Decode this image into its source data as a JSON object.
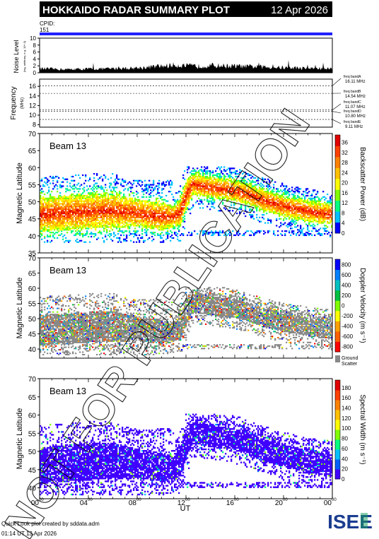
{
  "header": {
    "title": "HOKKAIDO RADAR SUMMARY PLOT",
    "date": "12 Apr 2026",
    "cpid_label": "CPID:",
    "cpid_value": "151"
  },
  "colors": {
    "header_bg": "#000000",
    "cpid_bar": "#2020ff",
    "ground_scatter": "#888888"
  },
  "noise_panel": {
    "ylabel": "Noise Level",
    "ylabel_sub": "(log, arbitrary, e.g. 10^-3)",
    "yticks": [
      "0",
      "2",
      "4",
      "6",
      "8",
      "10"
    ],
    "ylim": [
      0,
      10
    ]
  },
  "freq_panel": {
    "ylabel": "Frequency",
    "ylabel_sub": "(MHz)",
    "yticks": [
      "8",
      "10",
      "12",
      "14",
      "16"
    ],
    "ylim": [
      7.5,
      17.5
    ],
    "bands": [
      {
        "name": "freq bandA",
        "value": "16.11 MHz",
        "mhz": 16.11
      },
      {
        "name": "freq bandB",
        "value": "14.54 MHz",
        "mhz": 14.54
      },
      {
        "name": "freq bandC",
        "value": "11.07 MHz",
        "mhz": 11.07
      },
      {
        "name": "freq bandD",
        "value": "10.80 MHz",
        "mhz": 10.8
      },
      {
        "name": "freq bandE",
        "value": "9.11 MHz",
        "mhz": 9.11
      }
    ]
  },
  "panels": [
    {
      "beam_label": "Beam 13",
      "ylabel": "Magnetic Latitude",
      "yticks": [
        "35",
        "40",
        "45",
        "50",
        "55",
        "60",
        "65",
        "70"
      ],
      "ylim": [
        35,
        70
      ],
      "colorbar_label": "Backscatter Power (dB)",
      "colorbar_ticks": [
        "0",
        "4",
        "8",
        "12",
        "16",
        "20",
        "24",
        "28",
        "32",
        "36"
      ],
      "colorbar_range": [
        0,
        39
      ],
      "colorbar_colors": [
        "#0000ff",
        "#00c0ff",
        "#00ff80",
        "#80ff00",
        "#ffff00",
        "#ffc000",
        "#ff8000",
        "#ff4000",
        "#e00000"
      ]
    },
    {
      "beam_label": "Beam 13",
      "ylabel": "Magnetic Latitude",
      "yticks": [
        "40",
        "45",
        "50",
        "55",
        "60",
        "65",
        "70"
      ],
      "ylim": [
        37,
        70
      ],
      "colorbar_label": "Doppler Velocity (m s⁻¹)",
      "colorbar_ticks": [
        "-800",
        "-600",
        "-400",
        "-200",
        "0",
        "200",
        "400",
        "600",
        "800"
      ],
      "colorbar_range": [
        -900,
        900
      ],
      "colorbar_colors": [
        "#ff0000",
        "#ff6000",
        "#ffa000",
        "#ffff00",
        "#80ff00",
        "#00c040",
        "#00c0c0",
        "#0080ff",
        "#0000ff"
      ],
      "ground_label_1": "Ground",
      "ground_label_2": "Scatter"
    },
    {
      "beam_label": "Beam 13",
      "ylabel": "Magnetic Latitude",
      "yticks": [
        "40",
        "45",
        "50",
        "55",
        "60",
        "65",
        "70"
      ],
      "ylim": [
        37,
        70
      ],
      "colorbar_label": "Spectral Width (m s⁻¹)",
      "colorbar_ticks": [
        "0",
        "20",
        "40",
        "60",
        "80",
        "100",
        "120",
        "140",
        "160",
        "180"
      ],
      "colorbar_range": [
        0,
        195
      ],
      "colorbar_colors": [
        "#4000ff",
        "#0060ff",
        "#00c0ff",
        "#00ff80",
        "#80ff00",
        "#ffff00",
        "#ffc000",
        "#ff8000",
        "#ff4000",
        "#e00000"
      ]
    }
  ],
  "xaxis": {
    "label": "UT",
    "ticks": [
      {
        "h": "00",
        "m": "00"
      },
      {
        "h": "04",
        "m": "00"
      },
      {
        "h": "08",
        "m": "00"
      },
      {
        "h": "12",
        "m": "00"
      },
      {
        "h": "16",
        "m": "00"
      },
      {
        "h": "20",
        "m": "00"
      },
      {
        "h": "00",
        "m": "00"
      }
    ],
    "range_hours": [
      0,
      24
    ]
  },
  "watermark": "NOT FOR PUBLICATION",
  "footer": {
    "line1": "Quick Look plot created by sddata.adm",
    "line2": "01:14 UT 13 Apr 2026"
  },
  "logo": {
    "text": "ISEE"
  },
  "chart_data": {
    "type": "heatmap",
    "title": "HOKKAIDO RADAR SUMMARY PLOT",
    "x_range_hours": [
      0,
      24
    ],
    "noise_level": {
      "x": [
        0,
        2,
        4,
        6,
        8,
        10,
        11,
        12,
        13,
        14,
        16,
        18,
        20,
        22,
        24
      ],
      "y": [
        1.2,
        1.0,
        1.1,
        1.2,
        1.4,
        1.9,
        2.2,
        2.0,
        1.9,
        2.1,
        1.9,
        1.7,
        1.5,
        1.3,
        1.2
      ]
    },
    "scatter_band": {
      "description_hours": [
        0,
        2,
        4,
        6,
        8,
        10,
        11,
        11.5,
        12,
        12.5,
        14,
        16,
        17,
        18,
        20,
        22,
        24
      ],
      "lat_center": [
        46,
        46.5,
        47,
        47.2,
        46.5,
        45.5,
        45.5,
        47,
        52,
        55,
        54,
        53,
        52,
        50.5,
        48.5,
        47,
        46
      ],
      "lat_width": [
        5,
        5,
        5,
        5,
        4,
        4,
        3,
        4,
        4,
        3,
        3,
        3,
        3,
        3,
        3,
        3,
        3
      ]
    }
  }
}
